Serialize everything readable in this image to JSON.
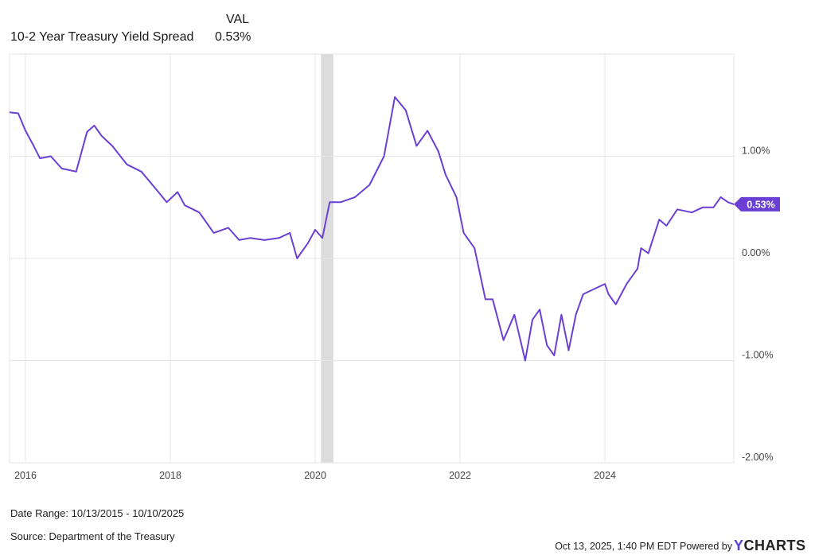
{
  "legend": {
    "column_header": "VAL",
    "series_name": "10-2 Year Treasury Yield Spread",
    "series_value": "0.53%"
  },
  "footer": {
    "date_range": "Date Range: 10/13/2015 - 10/10/2025",
    "source": "Source: Department of the Treasury",
    "timestamp": "Oct 13, 2025, 1:40 PM EDT Powered by",
    "brand_y": "Y",
    "brand_rest": "CHARTS"
  },
  "colors": {
    "line": "#6b3fd4",
    "grid": "#e6e6e6",
    "shade": "#dcdcdc",
    "axis_text": "#444444",
    "badge": "#6b3fd4"
  },
  "chart_data": {
    "type": "line",
    "x_range": [
      2015.78,
      2025.78
    ],
    "ylim": [
      -2.0,
      2.0
    ],
    "y_ticks": [
      {
        "value": 1.0,
        "label": "1.00%"
      },
      {
        "value": 0.0,
        "label": "0.00%"
      },
      {
        "value": -1.0,
        "label": "-1.00%"
      },
      {
        "value": -2.0,
        "label": "-2.00%"
      }
    ],
    "x_ticks": [
      {
        "value": 2016,
        "label": "2016"
      },
      {
        "value": 2018,
        "label": "2018"
      },
      {
        "value": 2020,
        "label": "2020"
      },
      {
        "value": 2022,
        "label": "2022"
      },
      {
        "value": 2024,
        "label": "2024"
      }
    ],
    "recession_shade": [
      2020.08,
      2020.25
    ],
    "last_value_label": "0.53%",
    "last_value": 0.53,
    "series": [
      {
        "name": "10-2 Year Treasury Yield Spread",
        "x": [
          2015.78,
          2015.9,
          2016.0,
          2016.1,
          2016.2,
          2016.35,
          2016.5,
          2016.7,
          2016.85,
          2016.95,
          2017.05,
          2017.2,
          2017.4,
          2017.6,
          2017.8,
          2017.95,
          2018.1,
          2018.2,
          2018.4,
          2018.6,
          2018.8,
          2018.95,
          2019.1,
          2019.3,
          2019.5,
          2019.65,
          2019.75,
          2019.9,
          2020.0,
          2020.1,
          2020.2,
          2020.35,
          2020.55,
          2020.75,
          2020.95,
          2021.1,
          2021.25,
          2021.4,
          2021.55,
          2021.7,
          2021.8,
          2021.95,
          2022.05,
          2022.2,
          2022.35,
          2022.45,
          2022.6,
          2022.75,
          2022.9,
          2023.0,
          2023.1,
          2023.2,
          2023.3,
          2023.4,
          2023.5,
          2023.6,
          2023.7,
          2023.85,
          2024.0,
          2024.05,
          2024.15,
          2024.3,
          2024.45,
          2024.5,
          2024.6,
          2024.75,
          2024.85,
          2025.0,
          2025.2,
          2025.35,
          2025.5,
          2025.6,
          2025.7,
          2025.78
        ],
        "y": [
          1.43,
          1.42,
          1.25,
          1.12,
          0.98,
          1.0,
          0.88,
          0.85,
          1.24,
          1.3,
          1.2,
          1.1,
          0.92,
          0.85,
          0.68,
          0.55,
          0.65,
          0.52,
          0.45,
          0.25,
          0.3,
          0.18,
          0.2,
          0.18,
          0.2,
          0.25,
          0.0,
          0.15,
          0.28,
          0.2,
          0.55,
          0.55,
          0.6,
          0.72,
          1.0,
          1.58,
          1.45,
          1.1,
          1.25,
          1.05,
          0.82,
          0.6,
          0.25,
          0.1,
          -0.4,
          -0.4,
          -0.8,
          -0.55,
          -1.0,
          -0.6,
          -0.5,
          -0.85,
          -0.95,
          -0.55,
          -0.9,
          -0.55,
          -0.35,
          -0.3,
          -0.25,
          -0.35,
          -0.45,
          -0.25,
          -0.1,
          0.1,
          0.05,
          0.38,
          0.32,
          0.48,
          0.45,
          0.5,
          0.5,
          0.6,
          0.55,
          0.53
        ]
      }
    ]
  }
}
